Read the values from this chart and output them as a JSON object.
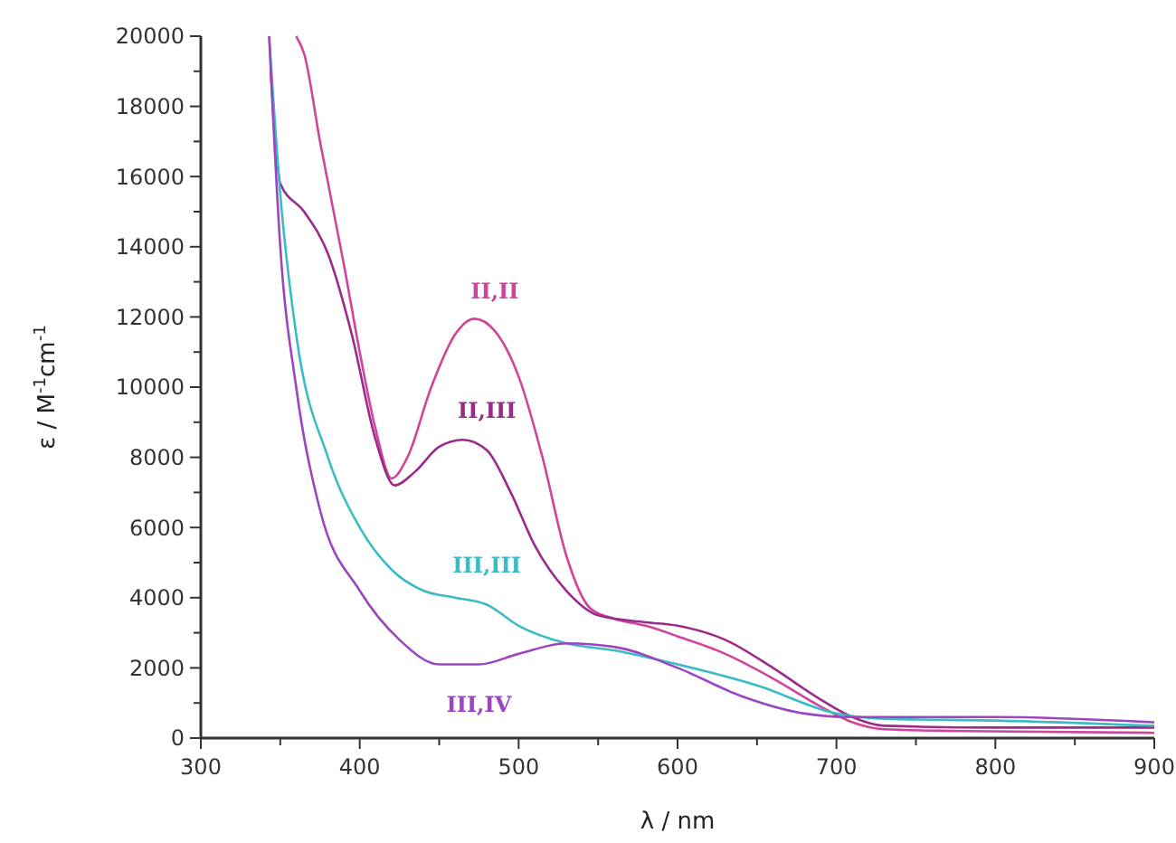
{
  "chart_data": {
    "type": "line",
    "xlabel": "λ / nm",
    "ylabel": "ε / M$^{-1}$cm$^{-1}$",
    "xlim": [
      300,
      900
    ],
    "ylim": [
      0,
      20000
    ],
    "xticks": [
      300,
      {
        "value": 350,
        "label": null
      },
      400,
      {
        "value": 450,
        "label": null
      },
      500,
      {
        "value": 550,
        "label": null
      },
      600,
      {
        "value": 650,
        "label": null
      },
      700,
      {
        "value": 750,
        "label": null
      },
      800,
      {
        "value": 850,
        "label": null
      },
      900
    ],
    "yticks": [
      0,
      {
        "value": 1000,
        "label": null
      },
      2000,
      {
        "value": 3000,
        "label": null
      },
      4000,
      {
        "value": 5000,
        "label": null
      },
      6000,
      {
        "value": 7000,
        "label": null
      },
      8000,
      {
        "value": 9000,
        "label": null
      },
      10000,
      {
        "value": 11000,
        "label": null
      },
      12000,
      {
        "value": 13000,
        "label": null
      },
      14000,
      {
        "value": 15000,
        "label": null
      },
      16000,
      {
        "value": 17000,
        "label": null
      },
      18000,
      {
        "value": 19000,
        "label": null
      },
      20000
    ],
    "grid": false,
    "marker": "none",
    "line_style": "solid",
    "series": [
      {
        "name": "II,II",
        "color": "#d0449a",
        "x": [
          360,
          365,
          375,
          390,
          400,
          410,
          420,
          430,
          445,
          460,
          472,
          485,
          500,
          515,
          530,
          545,
          560,
          580,
          600,
          630,
          660,
          690,
          710,
          730,
          780,
          900
        ],
        "values": [
          20000,
          19500,
          17000,
          13500,
          11000,
          8800,
          7400,
          8000,
          10000,
          11500,
          11950,
          11600,
          10300,
          8000,
          5200,
          3700,
          3400,
          3200,
          2900,
          2400,
          1700,
          900,
          450,
          250,
          200,
          150
        ]
      },
      {
        "name": "II,III",
        "color": "#9c2a8a",
        "x": [
          344,
          350,
          365,
          380,
          395,
          410,
          422,
          435,
          450,
          465,
          480,
          495,
          510,
          530,
          550,
          580,
          600,
          630,
          660,
          690,
          710,
          730,
          800,
          900
        ],
        "values": [
          19000,
          15800,
          15000,
          13800,
          11500,
          8500,
          7200,
          7600,
          8300,
          8500,
          8200,
          7000,
          5500,
          4200,
          3500,
          3300,
          3200,
          2800,
          2000,
          1100,
          600,
          350,
          300,
          300
        ]
      },
      {
        "name": "III,III",
        "color": "#3bbcc4",
        "x": [
          343,
          350,
          360,
          380,
          400,
          420,
          440,
          460,
          480,
          500,
          530,
          560,
          600,
          650,
          700,
          730,
          800,
          900
        ],
        "values": [
          20000,
          15500,
          11500,
          8000,
          6000,
          4800,
          4200,
          4000,
          3800,
          3200,
          2700,
          2500,
          2100,
          1500,
          700,
          550,
          500,
          350
        ]
      },
      {
        "name": "III,IV",
        "color": "#9b45c0",
        "x": [
          343,
          350,
          360,
          375,
          400,
          425,
          450,
          475,
          500,
          530,
          560,
          600,
          640,
          680,
          710,
          800,
          900
        ],
        "values": [
          20000,
          14000,
          10000,
          6500,
          4200,
          2800,
          2100,
          2100,
          2400,
          2700,
          2600,
          2000,
          1200,
          700,
          600,
          600,
          450
        ]
      }
    ]
  }
}
